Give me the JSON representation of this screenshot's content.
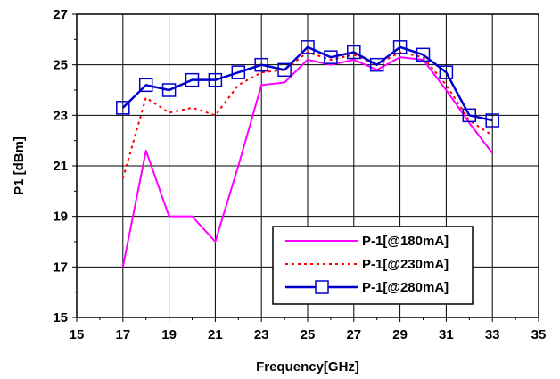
{
  "chart_data": {
    "type": "line",
    "title": "",
    "xlabel": "Frequency[GHz]",
    "ylabel": "P1 [dBm]",
    "xlim": [
      15,
      35
    ],
    "ylim": [
      15,
      27
    ],
    "xticks": [
      15,
      17,
      19,
      21,
      23,
      25,
      27,
      29,
      31,
      33,
      35
    ],
    "yticks": [
      15,
      17,
      19,
      21,
      23,
      25,
      27
    ],
    "grid": true,
    "legend_position": "bottom-right",
    "series": [
      {
        "name": "P-1[@180mA]",
        "color": "#ff00ff",
        "style": "solid",
        "marker": "none",
        "x": [
          17,
          18,
          19,
          20,
          21,
          22,
          23,
          24,
          25,
          26,
          27,
          28,
          29,
          30,
          31,
          32,
          33
        ],
        "y": [
          17.0,
          21.6,
          19.0,
          19.0,
          18.0,
          21.0,
          24.2,
          24.3,
          25.2,
          25.0,
          25.2,
          24.8,
          25.3,
          25.2,
          24.0,
          22.7,
          21.5
        ]
      },
      {
        "name": "P-1[@230mA]",
        "color": "#ff0000",
        "style": "dotted",
        "marker": "none",
        "x": [
          17,
          18,
          19,
          20,
          21,
          22,
          23,
          24,
          25,
          26,
          27,
          28,
          29,
          30,
          31,
          32,
          33
        ],
        "y": [
          20.5,
          23.7,
          23.1,
          23.3,
          23.0,
          24.2,
          24.7,
          24.8,
          25.5,
          25.2,
          25.4,
          25.0,
          25.5,
          25.3,
          24.2,
          22.8,
          22.2
        ]
      },
      {
        "name": "P-1[@280mA]",
        "color": "#0000cc",
        "style": "solid",
        "marker": "square",
        "x": [
          17,
          18,
          19,
          20,
          21,
          22,
          23,
          24,
          25,
          26,
          27,
          28,
          29,
          30,
          31,
          32,
          33
        ],
        "y": [
          23.3,
          24.2,
          24.0,
          24.4,
          24.4,
          24.7,
          25.0,
          24.8,
          25.7,
          25.3,
          25.5,
          25.0,
          25.7,
          25.4,
          24.7,
          23.0,
          22.8
        ]
      }
    ]
  }
}
